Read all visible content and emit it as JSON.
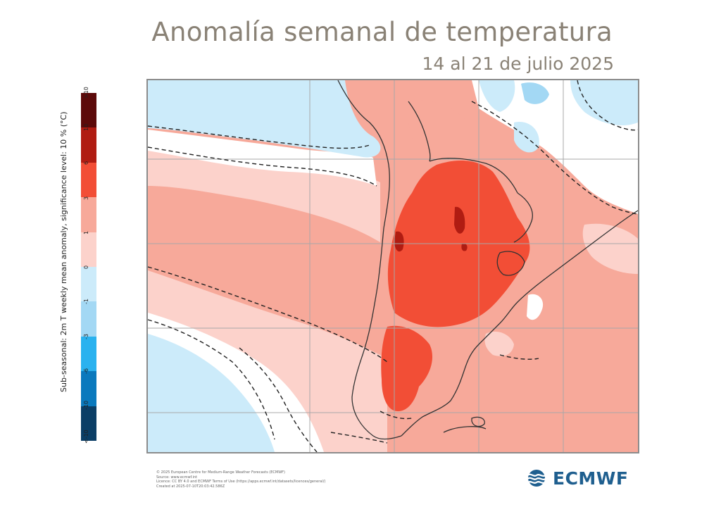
{
  "header": {
    "title": "Anomalía semanal de temperatura",
    "subtitle": "14 al 21 de julio 2025"
  },
  "legend": {
    "title": "Sub-seasonal: 2m T weekly mean anomaly, significance level: 10 % (°C)",
    "tick_labels": [
      ">10",
      "10",
      "6",
      "3",
      "1",
      "0",
      "-1",
      "-3",
      "-6",
      "-10",
      "<-10"
    ],
    "colors": [
      "#5c0a0a",
      "#b01c12",
      "#f24e36",
      "#f7a99a",
      "#fcd2cb",
      "#ccebfa",
      "#a3d8f4",
      "#2ab2ef",
      "#0a79bd",
      "#0b3e66"
    ]
  },
  "map": {
    "land_color": "#8a8a8a",
    "grid_color": "#9a9a9a",
    "fill_colors": {
      "ocean_cold": "#ccebfa",
      "neutral": "#ffffff",
      "warm_light": "#fcd2cb",
      "warm": "#f7a99a",
      "warm_strong": "#f24e36",
      "warm_extreme": "#b01c12"
    }
  },
  "credits": [
    "© 2025 European Centre for Medium-Range Weather Forecasts (ECMWF)",
    "Source: www.ecmwf.int",
    "Licence: CC BY 4.0 and ECMWF Terms of Use (https://apps.ecmwf.int/datasets/licences/general/)",
    "Created at 2025-07-10T20:03:42.586Z"
  ],
  "logo": {
    "text": "ECMWF",
    "icon": "ecmwf-waves-icon",
    "color": "#1f5f8f"
  }
}
